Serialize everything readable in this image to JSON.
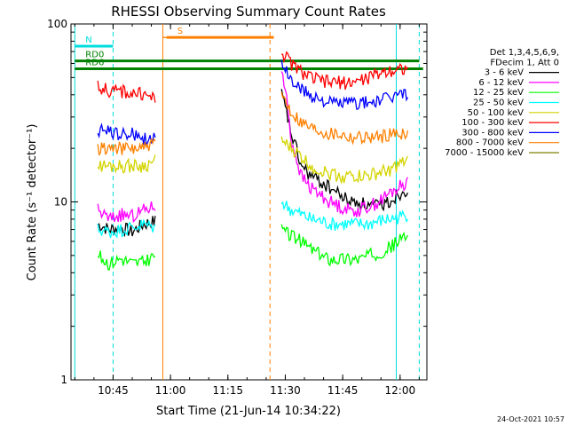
{
  "chart_data": {
    "type": "line",
    "title": "RHESSI Observing Summary Count Rates",
    "xlabel": "Start Time (21-Jun-14 10:34:22)",
    "ylabel": "Count Rate (s⁻¹ detector⁻¹)",
    "yscale": "log",
    "ylim": [
      1,
      100
    ],
    "xlim_minutes": [
      "10:34",
      "12:07"
    ],
    "x_ticks": [
      "10:45",
      "11:00",
      "11:15",
      "11:30",
      "11:45",
      "12:00"
    ],
    "y_ticks": [
      "1",
      "10",
      "100"
    ],
    "timestamp": "24-Oct-2021 10:57",
    "legend": {
      "header": [
        "Det 1,3,4,5,6,9,",
        "FDecim 1, Att 0"
      ],
      "items": [
        {
          "label": "3 - 6 keV",
          "color": "#000000"
        },
        {
          "label": "6 - 12 keV",
          "color": "#ff00ff"
        },
        {
          "label": "12 - 25 keV",
          "color": "#00ff00"
        },
        {
          "label": "25 - 50 keV",
          "color": "#00ffff"
        },
        {
          "label": "50 - 100 keV",
          "color": "#d4d400"
        },
        {
          "label": "100 - 300 keV",
          "color": "#ff0000"
        },
        {
          "label": "300 - 800 keV",
          "color": "#0000ff"
        },
        {
          "label": "800 - 7000 keV",
          "color": "#ff8000"
        },
        {
          "label": "7000 - 15000 keV",
          "color": "#808000"
        }
      ]
    },
    "flags": [
      {
        "label": "N",
        "color": "#00dddd",
        "start": "10:35",
        "end": "10:45",
        "value": 75
      },
      {
        "label": "S",
        "color": "#ff8000",
        "start": "10:59",
        "end": "11:27",
        "value": 84
      },
      {
        "label": "RD0",
        "color": "#008000",
        "start": "10:35",
        "end": "12:05",
        "value": 62
      },
      {
        "label": "RD6",
        "color": "#008000",
        "start": "10:35",
        "end": "12:06",
        "value": 56
      }
    ],
    "vertical_markers": [
      {
        "time": "10:35",
        "color": "#00dddd",
        "style": "solid"
      },
      {
        "time": "10:45",
        "color": "#00dddd",
        "style": "dashed"
      },
      {
        "time": "10:58",
        "color": "#ff8000",
        "style": "solid"
      },
      {
        "time": "11:26",
        "color": "#ff8000",
        "style": "dashed"
      },
      {
        "time": "11:59",
        "color": "#00dddd",
        "style": "solid"
      },
      {
        "time": "12:05",
        "color": "#00dddd",
        "style": "dashed"
      }
    ],
    "series": [
      {
        "name": "3 - 6 keV",
        "color": "#000000",
        "segments": [
          {
            "t0": "10:41",
            "t1": "10:56",
            "values": [
              7.5,
              7,
              7.2,
              6.8,
              7.5,
              7.8
            ]
          },
          {
            "t0": "11:29",
            "t1": "12:02",
            "values": [
              40,
              24,
              16,
              14,
              13,
              12,
              11,
              10,
              10,
              9.5,
              9.5,
              10,
              11,
              12
            ]
          }
        ]
      },
      {
        "name": "6 - 12 keV",
        "color": "#ff00ff",
        "segments": [
          {
            "t0": "10:41",
            "t1": "10:56",
            "values": [
              9,
              8,
              8.5,
              8.3,
              9,
              9.5
            ]
          },
          {
            "t0": "11:29",
            "t1": "12:02",
            "values": [
              55,
              22,
              14,
              12,
              11,
              10,
              9.5,
              9,
              9,
              9.5,
              10,
              11,
              12,
              13
            ]
          }
        ]
      },
      {
        "name": "12 - 25 keV",
        "color": "#00ff00",
        "segments": [
          {
            "t0": "10:41",
            "t1": "10:56",
            "values": [
              5,
              4.5,
              4.8,
              4.5,
              4.6,
              5
            ]
          },
          {
            "t0": "11:29",
            "t1": "12:02",
            "values": [
              7,
              6.5,
              6,
              5.5,
              5,
              4.8,
              4.8,
              4.8,
              4.8,
              5,
              5.2,
              5.5,
              6,
              6.5
            ]
          }
        ]
      },
      {
        "name": "25 - 50 keV",
        "color": "#00ffff",
        "segments": [
          {
            "t0": "10:41",
            "t1": "10:56",
            "values": [
              7,
              6.8,
              7,
              7.2,
              7.5,
              7.2
            ]
          },
          {
            "t0": "11:29",
            "t1": "12:02",
            "values": [
              10,
              9,
              8.5,
              8,
              7.8,
              7.5,
              7.5,
              7.5,
              7.5,
              7.5,
              7.8,
              8,
              8.2,
              8.5
            ]
          }
        ]
      },
      {
        "name": "50 - 100 keV",
        "color": "#d4d400",
        "segments": [
          {
            "t0": "10:41",
            "t1": "10:56",
            "values": [
              16,
              16,
              16,
              16,
              16,
              17
            ]
          },
          {
            "t0": "11:29",
            "t1": "12:02",
            "values": [
              22,
              20,
              18,
              16,
              15,
              14.5,
              14,
              14,
              14,
              14,
              14.5,
              15,
              16,
              17
            ]
          }
        ]
      },
      {
        "name": "100 - 300 keV",
        "color": "#ff0000",
        "segments": [
          {
            "t0": "10:41",
            "t1": "10:56",
            "values": [
              45,
              42,
              42,
              41,
              40,
              38
            ]
          },
          {
            "t0": "11:29",
            "t1": "12:02",
            "values": [
              70,
              60,
              54,
              50,
              48,
              47,
              47,
              47,
              48,
              50,
              53,
              55,
              56,
              57
            ]
          }
        ]
      },
      {
        "name": "300 - 800 keV",
        "color": "#0000ff",
        "segments": [
          {
            "t0": "10:41",
            "t1": "10:56",
            "values": [
              25,
              25,
              24,
              24,
              23,
              23
            ]
          },
          {
            "t0": "11:29",
            "t1": "12:02",
            "values": [
              60,
              48,
              43,
              40,
              38,
              36,
              36,
              36,
              36,
              36,
              37,
              38,
              40,
              41
            ]
          }
        ]
      },
      {
        "name": "800 - 7000 keV",
        "color": "#ff8000",
        "segments": [
          {
            "t0": "10:41",
            "t1": "10:56",
            "values": [
              20,
              20,
              20,
              20,
              20,
              21
            ]
          },
          {
            "t0": "10:58",
            "t1": "11:26",
            "values": [
              84,
              84,
              84,
              84,
              84,
              84
            ]
          },
          {
            "t0": "11:29",
            "t1": "12:02",
            "values": [
              40,
              32,
              28,
              26,
              25,
              24,
              24,
              23,
              23,
              23,
              23,
              24,
              24,
              25
            ]
          }
        ]
      },
      {
        "name": "7000 - 15000 keV",
        "color": "#808000",
        "segments": []
      }
    ]
  }
}
